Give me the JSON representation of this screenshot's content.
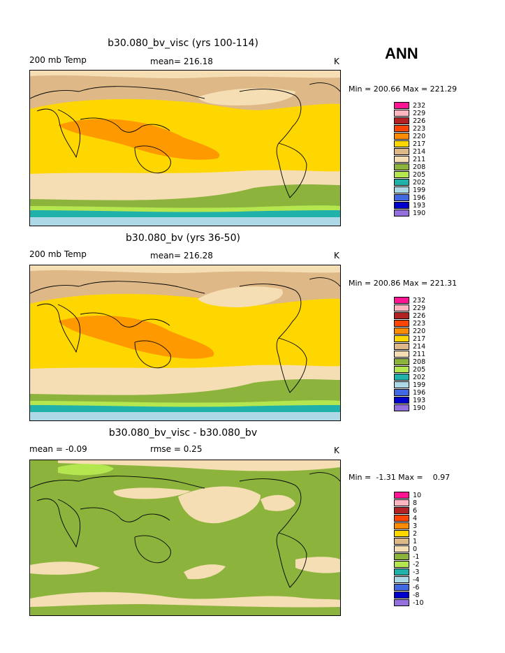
{
  "season": "ANN",
  "panels": [
    {
      "title": "b30.080_bv_visc (yrs 100-114)",
      "left": "200 mb Temp",
      "center": "mean= 216.18",
      "right": "K",
      "minmax": "Min = 200.66 Max = 221.29",
      "colorbar_labels": [
        "232",
        "229",
        "226",
        "223",
        "220",
        "217",
        "214",
        "211",
        "208",
        "205",
        "202",
        "199",
        "196",
        "193",
        "190"
      ]
    },
    {
      "title": "b30.080_bv (yrs 36-50)",
      "left": "200 mb Temp",
      "center": "mean= 216.28",
      "right": "K",
      "minmax": "Min = 200.86 Max = 221.31",
      "colorbar_labels": [
        "232",
        "229",
        "226",
        "223",
        "220",
        "217",
        "214",
        "211",
        "208",
        "205",
        "202",
        "199",
        "196",
        "193",
        "190"
      ]
    },
    {
      "title": "b30.080_bv_visc - b30.080_bv",
      "left": "mean =  -0.09",
      "center": "rmse =    0.25",
      "right": "K",
      "minmax": "Min =  -1.31 Max =    0.97",
      "colorbar_labels": [
        "10",
        "8",
        "6",
        "4",
        "3",
        "2",
        "1",
        "0",
        "-1",
        "-2",
        "-3",
        "-4",
        "-6",
        "-8",
        "-10"
      ]
    }
  ],
  "colorbar_colors": [
    "#ff1493",
    "#ffb6c1",
    "#b22222",
    "#ff4500",
    "#ff8c00",
    "#ffd700",
    "#deb887",
    "#f5deb3",
    "#8cb43c",
    "#b4e650",
    "#20b2aa",
    "#add8e6",
    "#4169e1",
    "#0000cd",
    "#9370db"
  ]
}
